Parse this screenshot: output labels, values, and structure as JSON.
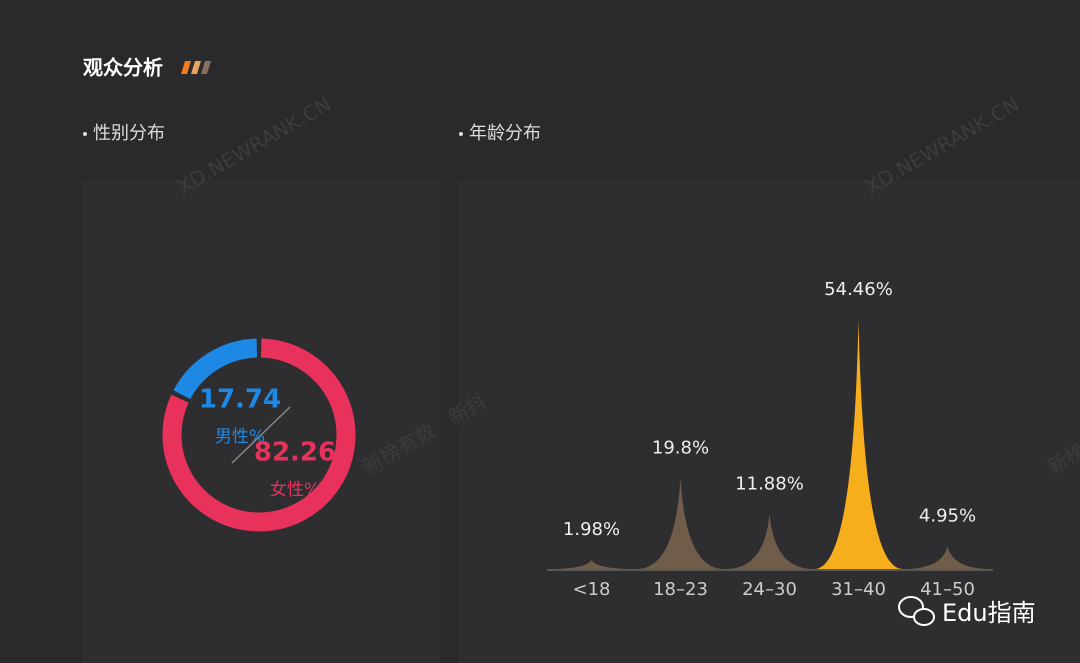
{
  "header": {
    "title": "观众分析"
  },
  "watermarks": [
    "XD.NEWRANK.CN",
    "XD.NEWRANK.CN",
    "新榜有数 · 新抖",
    "新榜"
  ],
  "footer": {
    "brand": "Edu指南"
  },
  "chart_data": [
    {
      "type": "donut",
      "title": "性别分布",
      "categories": [
        "男性%",
        "女性%"
      ],
      "values": [
        17.74,
        82.26
      ],
      "colors": [
        "#1e88e5",
        "#e8315b"
      ]
    },
    {
      "type": "spike",
      "title": "年龄分布",
      "categories": [
        "<18",
        "18–23",
        "24–30",
        "31–40",
        "41–50"
      ],
      "values": [
        1.98,
        19.8,
        11.88,
        54.46,
        4.95
      ],
      "value_labels": [
        "1.98%",
        "19.8%",
        "11.88%",
        "54.46%",
        "4.95%"
      ],
      "colors": [
        "#6f5c49",
        "#6f5c49",
        "#6f5c49",
        "#f7ae1c",
        "#6f5c49"
      ]
    }
  ]
}
